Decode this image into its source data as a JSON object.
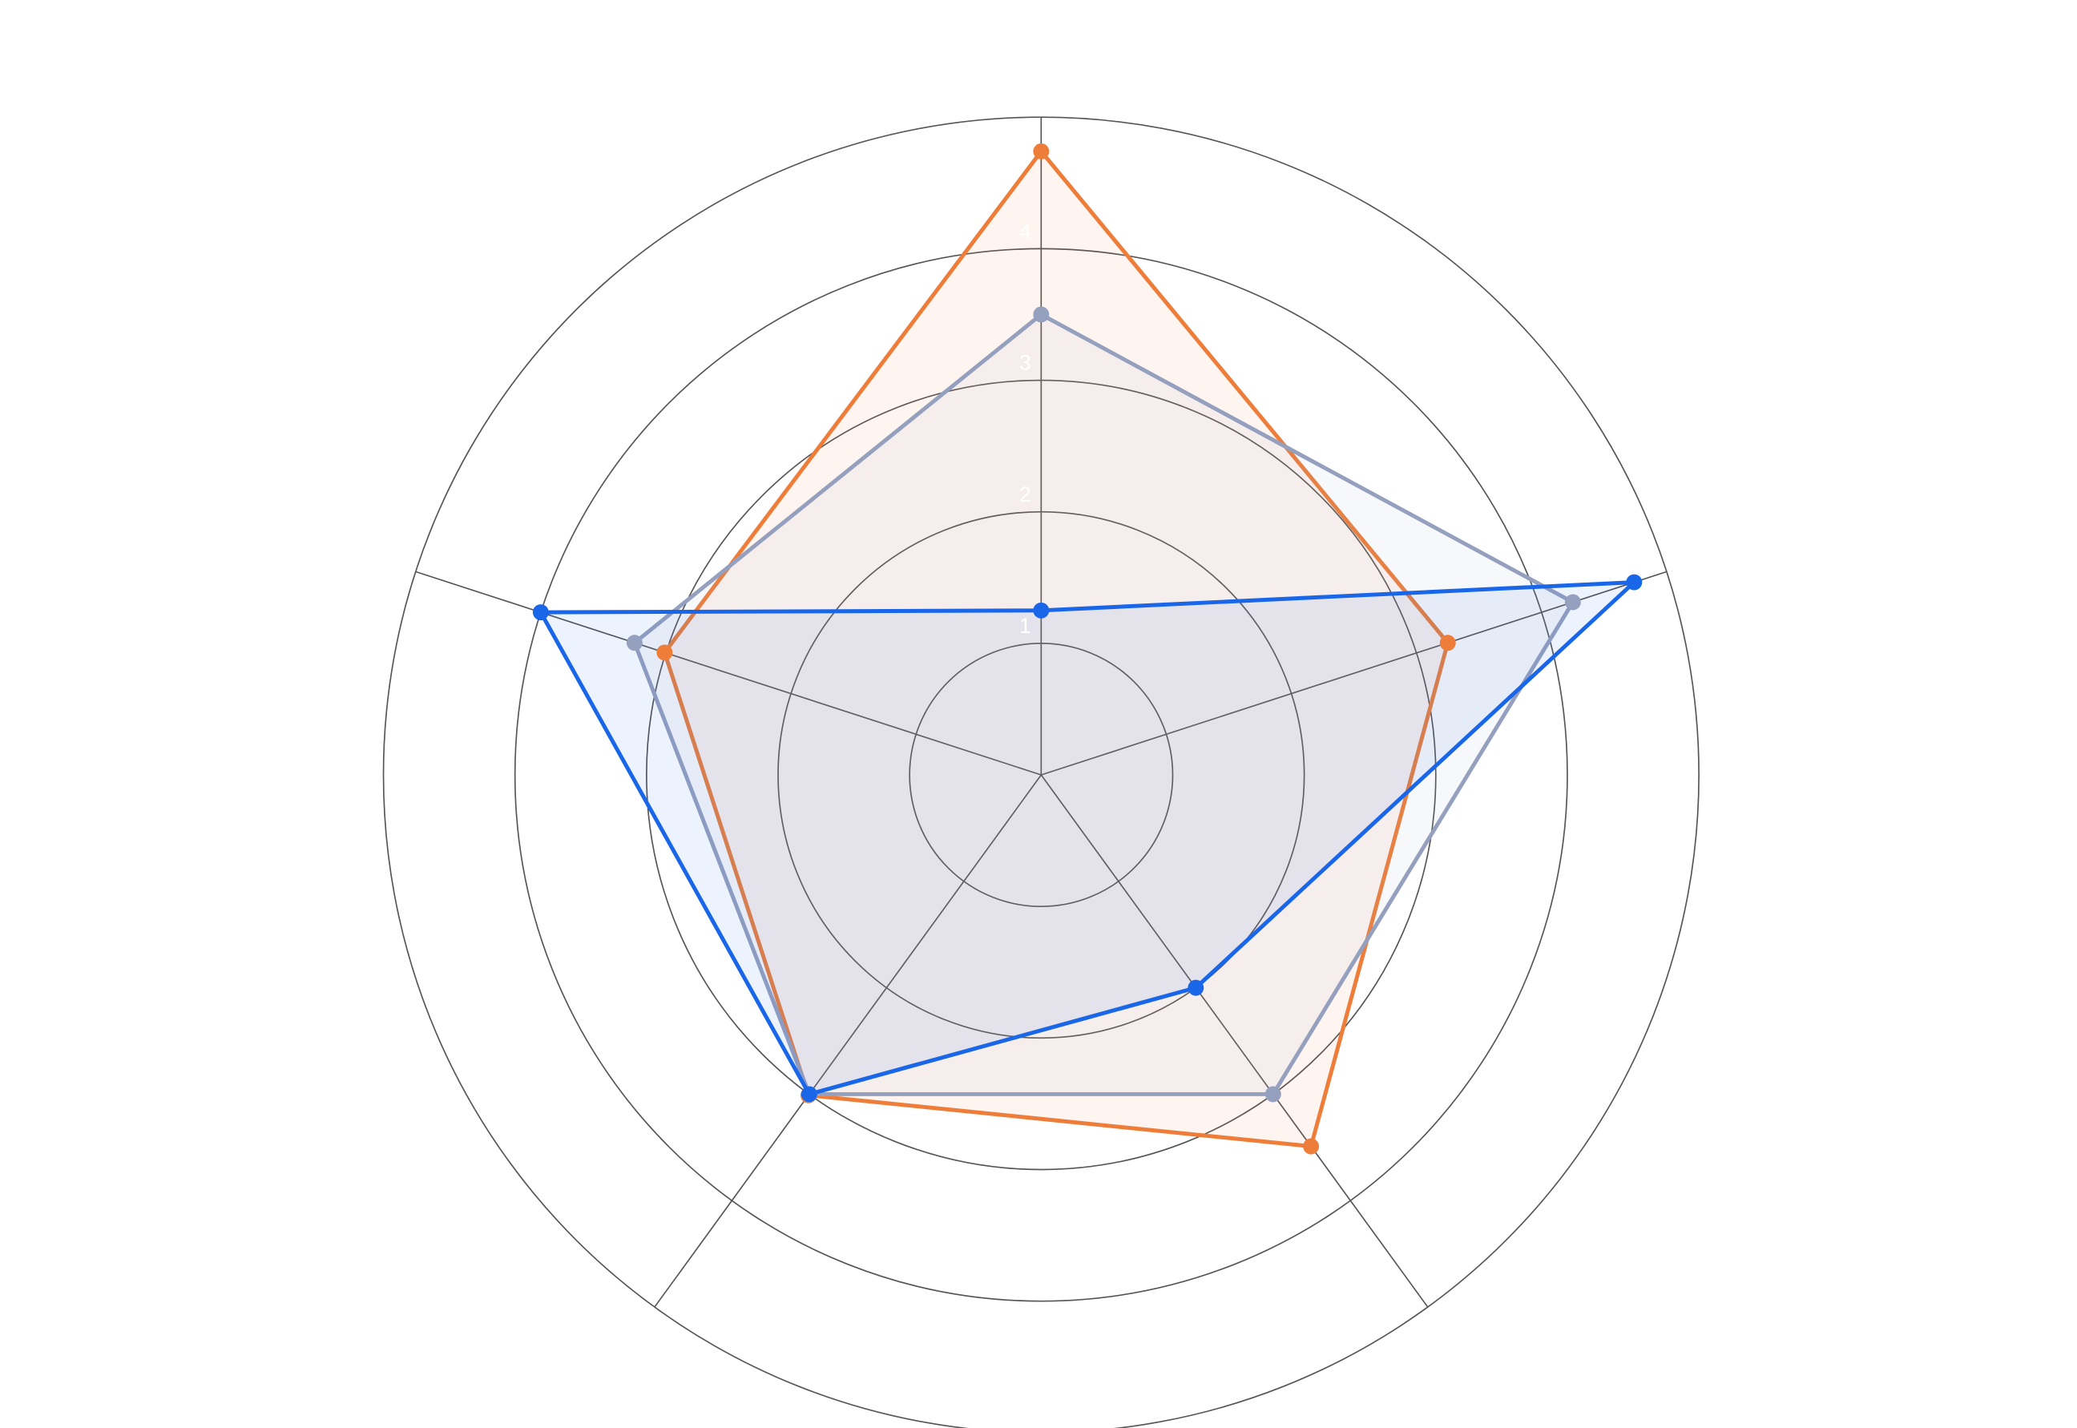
{
  "chart_data": {
    "type": "radar",
    "categories": [
      null,
      null,
      null,
      null,
      null
    ],
    "rlim": [
      0,
      5
    ],
    "rticks": [
      1,
      2,
      3,
      4
    ],
    "grid": true,
    "series": [
      {
        "color": "#ee7d3a",
        "values": [
          4.74,
          3.25,
          3.49,
          3.01,
          3.01
        ]
      },
      {
        "color": "#95a0bf",
        "values": [
          3.5,
          4.25,
          3.0,
          3.0,
          3.25
        ]
      },
      {
        "color": "#1a66e8",
        "values": [
          1.25,
          4.74,
          2.0,
          3.0,
          4.0
        ]
      }
    ]
  }
}
